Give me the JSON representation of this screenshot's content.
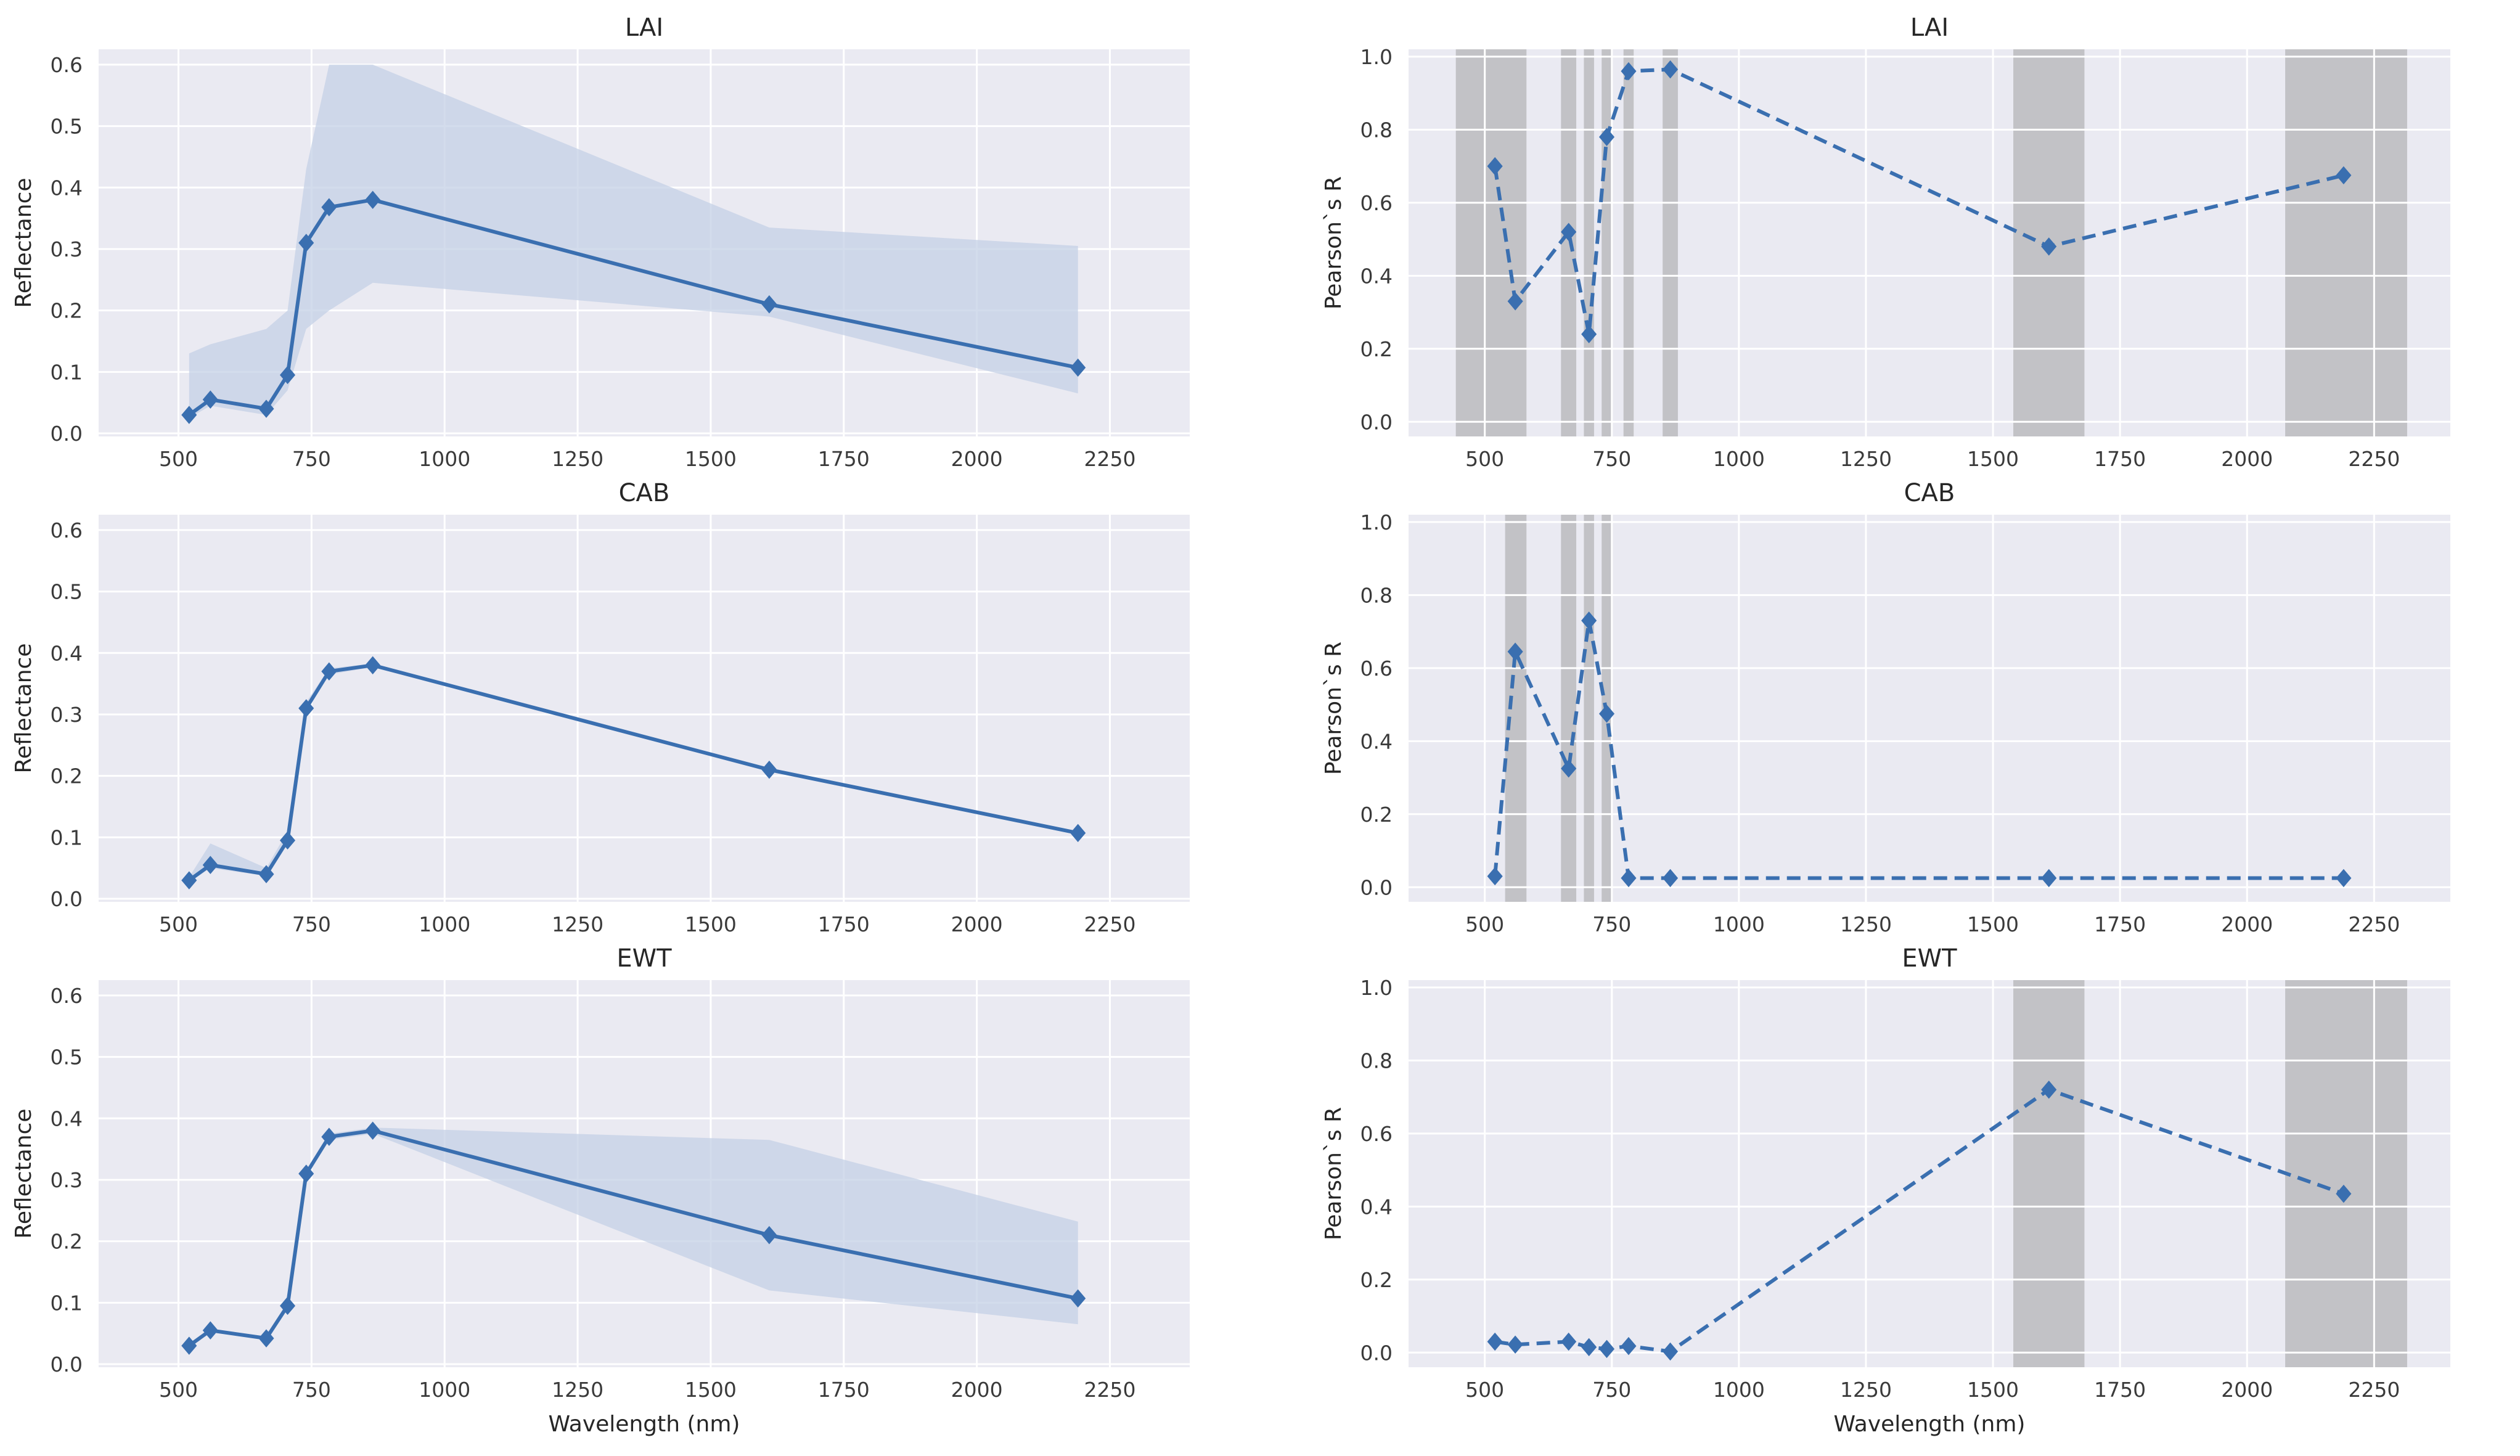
{
  "colors": {
    "panel_bg": "#eaeaf2",
    "grid": "#ffffff",
    "line": "#3a6fb0",
    "band": "#c4d0e6",
    "shade": "#a6a6a8"
  },
  "chart_data": [
    {
      "type": "line",
      "title": "LAI",
      "xlabel": "",
      "ylabel": "Reflectance",
      "xlim": [
        350,
        2400
      ],
      "ylim": [
        -0.005,
        0.625
      ],
      "xticks": [
        "500",
        "750",
        "1000",
        "1250",
        "1500",
        "1750",
        "2000",
        "2250"
      ],
      "yticks": [
        "0.0",
        "0.1",
        "0.2",
        "0.3",
        "0.4",
        "0.5",
        "0.6"
      ],
      "x": [
        520,
        560,
        665,
        705,
        740,
        783,
        865,
        1610,
        2190
      ],
      "series": [
        {
          "values": [
            0.03,
            0.055,
            0.04,
            0.095,
            0.31,
            0.368,
            0.38,
            0.21,
            0.107
          ],
          "lower": [
            0.025,
            0.045,
            0.03,
            0.07,
            0.17,
            0.2,
            0.245,
            0.19,
            0.065
          ],
          "upper": [
            0.13,
            0.145,
            0.17,
            0.2,
            0.43,
            0.6,
            0.6,
            0.335,
            0.305
          ]
        }
      ],
      "grid": true
    },
    {
      "type": "line",
      "title": "LAI",
      "xlabel": "",
      "ylabel": "Pearson`s R",
      "xlim": [
        350,
        2400
      ],
      "ylim": [
        -0.04,
        1.02
      ],
      "xticks": [
        "500",
        "750",
        "1000",
        "1250",
        "1500",
        "1750",
        "2000",
        "2250"
      ],
      "yticks": [
        "0.0",
        "0.2",
        "0.4",
        "0.6",
        "0.8",
        "1.0"
      ],
      "x": [
        520,
        560,
        665,
        705,
        740,
        783,
        865,
        1610,
        2190
      ],
      "series": [
        {
          "values": [
            0.7,
            0.33,
            0.52,
            0.24,
            0.78,
            0.96,
            0.965,
            0.48,
            0.675
          ],
          "style": "dashed"
        }
      ],
      "shaded_ranges": [
        [
          443,
          582
        ],
        [
          650,
          680
        ],
        [
          695,
          715
        ],
        [
          730,
          750
        ],
        [
          773,
          793
        ],
        [
          850,
          880
        ],
        [
          1540,
          1680
        ],
        [
          2075,
          2315
        ]
      ],
      "grid": true
    },
    {
      "type": "line",
      "title": "CAB",
      "xlabel": "",
      "ylabel": "Reflectance",
      "xlim": [
        350,
        2400
      ],
      "ylim": [
        -0.005,
        0.625
      ],
      "xticks": [
        "500",
        "750",
        "1000",
        "1250",
        "1500",
        "1750",
        "2000",
        "2250"
      ],
      "yticks": [
        "0.0",
        "0.1",
        "0.2",
        "0.3",
        "0.4",
        "0.5",
        "0.6"
      ],
      "x": [
        520,
        560,
        665,
        705,
        740,
        783,
        865,
        1610,
        2190
      ],
      "series": [
        {
          "values": [
            0.03,
            0.055,
            0.04,
            0.095,
            0.31,
            0.37,
            0.38,
            0.21,
            0.107
          ],
          "lower": [
            0.027,
            0.05,
            0.037,
            0.09,
            0.305,
            0.365,
            0.377,
            0.207,
            0.104
          ],
          "upper": [
            0.035,
            0.09,
            0.05,
            0.11,
            0.32,
            0.375,
            0.383,
            0.213,
            0.11
          ]
        }
      ],
      "grid": true
    },
    {
      "type": "line",
      "title": "CAB",
      "xlabel": "",
      "ylabel": "Pearson`s R",
      "xlim": [
        350,
        2400
      ],
      "ylim": [
        -0.04,
        1.02
      ],
      "xticks": [
        "500",
        "750",
        "1000",
        "1250",
        "1500",
        "1750",
        "2000",
        "2250"
      ],
      "yticks": [
        "0.0",
        "0.2",
        "0.4",
        "0.6",
        "0.8",
        "1.0"
      ],
      "x": [
        520,
        560,
        665,
        705,
        740,
        783,
        865,
        1610,
        2190
      ],
      "series": [
        {
          "values": [
            0.03,
            0.645,
            0.325,
            0.73,
            0.475,
            0.025,
            0.025,
            0.025,
            0.025
          ],
          "style": "dashed"
        }
      ],
      "shaded_ranges": [
        [
          540,
          582
        ],
        [
          650,
          680
        ],
        [
          695,
          715
        ],
        [
          730,
          750
        ]
      ],
      "grid": true
    },
    {
      "type": "line",
      "title": "EWT",
      "xlabel": "Wavelength (nm)",
      "ylabel": "Reflectance",
      "xlim": [
        350,
        2400
      ],
      "ylim": [
        -0.005,
        0.625
      ],
      "xticks": [
        "500",
        "750",
        "1000",
        "1250",
        "1500",
        "1750",
        "2000",
        "2250"
      ],
      "yticks": [
        "0.0",
        "0.1",
        "0.2",
        "0.3",
        "0.4",
        "0.5",
        "0.6"
      ],
      "x": [
        520,
        560,
        665,
        705,
        740,
        783,
        865,
        1610,
        2190
      ],
      "series": [
        {
          "values": [
            0.03,
            0.055,
            0.042,
            0.095,
            0.31,
            0.37,
            0.38,
            0.21,
            0.107
          ],
          "lower": [
            0.028,
            0.053,
            0.04,
            0.092,
            0.305,
            0.365,
            0.375,
            0.12,
            0.065
          ],
          "upper": [
            0.032,
            0.057,
            0.044,
            0.098,
            0.315,
            0.375,
            0.385,
            0.365,
            0.232
          ]
        }
      ],
      "grid": true
    },
    {
      "type": "line",
      "title": "EWT",
      "xlabel": "Wavelength (nm)",
      "ylabel": "Pearson`s R",
      "xlim": [
        350,
        2400
      ],
      "ylim": [
        -0.04,
        1.02
      ],
      "xticks": [
        "500",
        "750",
        "1000",
        "1250",
        "1500",
        "1750",
        "2000",
        "2250"
      ],
      "yticks": [
        "0.0",
        "0.2",
        "0.4",
        "0.6",
        "0.8",
        "1.0"
      ],
      "x": [
        520,
        560,
        665,
        705,
        740,
        783,
        865,
        1610,
        2190
      ],
      "series": [
        {
          "values": [
            0.03,
            0.022,
            0.03,
            0.015,
            0.01,
            0.018,
            0.003,
            0.72,
            0.435
          ],
          "style": "dashed"
        }
      ],
      "shaded_ranges": [
        [
          1540,
          1680
        ],
        [
          2075,
          2315
        ]
      ],
      "grid": true
    }
  ]
}
